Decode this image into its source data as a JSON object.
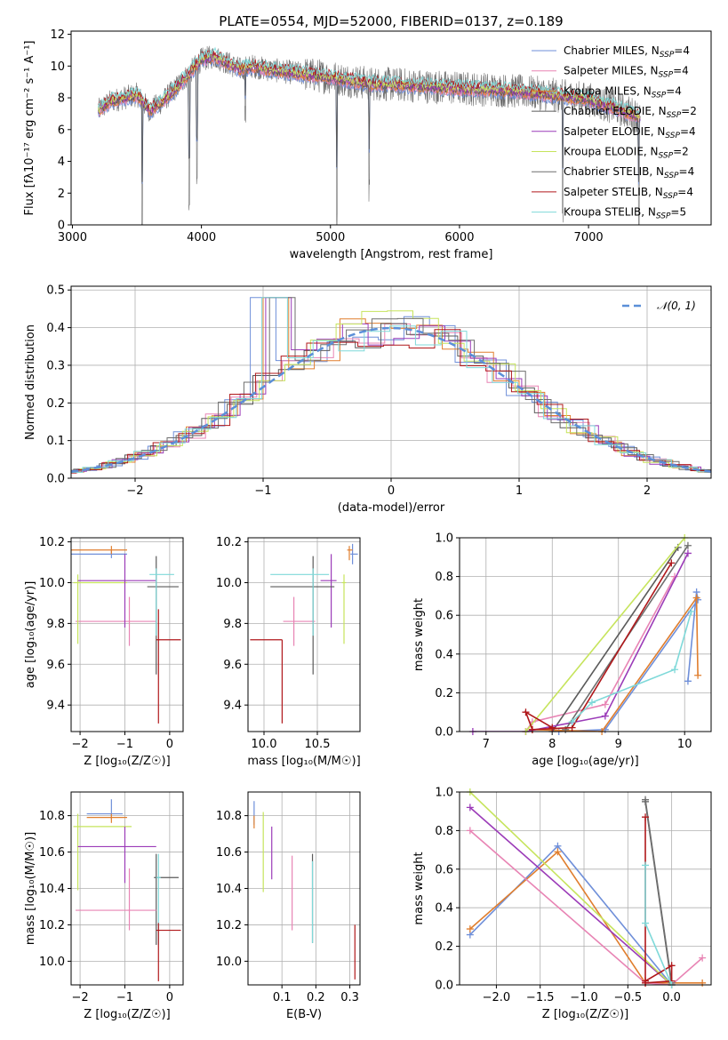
{
  "colors": {
    "Chabrier MILES": "#6f8fd9",
    "Salpeter MILES": "#e884b4",
    "Kroupa MILES": "#e07e2e",
    "Chabrier ELODIE": "#5a5a5a",
    "Salpeter ELODIE": "#9b3bb8",
    "Kroupa ELODIE": "#c6e45c",
    "Chabrier STELIB": "#6e6e6e",
    "Salpeter STELIB": "#b0181b",
    "Kroupa STELIB": "#7fd9d9",
    "gauss": "#5b8fd8"
  },
  "chart_data": [
    {
      "id": "spectrum",
      "type": "line",
      "title": "PLATE=0554, MJD=52000, FIBERID=0137, z=0.189",
      "xlabel": "wavelength [Angstrom, rest frame]",
      "ylabel": "Flux [fλ10⁻¹⁷ erg cm⁻² s⁻¹ A⁻¹]",
      "xlim": [
        2990,
        7950
      ],
      "ylim": [
        0,
        12.2
      ],
      "xticks": [
        3000,
        4000,
        5000,
        6000,
        7000
      ],
      "yticks": [
        0,
        2,
        4,
        6,
        8,
        10,
        12
      ],
      "legend_position": "top-right",
      "legend": [
        {
          "name": "Chabrier MILES",
          "sub": "4"
        },
        {
          "name": "Salpeter MILES",
          "sub": "4"
        },
        {
          "name": "Kroupa MILES",
          "sub": "4"
        },
        {
          "name": "Chabrier ELODIE",
          "sub": "2"
        },
        {
          "name": "Salpeter ELODIE",
          "sub": "4"
        },
        {
          "name": "Kroupa ELODIE",
          "sub": "2"
        },
        {
          "name": "Chabrier STELIB",
          "sub": "4"
        },
        {
          "name": "Salpeter STELIB",
          "sub": "4"
        },
        {
          "name": "Kroupa STELIB",
          "sub": "5"
        }
      ],
      "data_series": "Chabrier STELIB",
      "continuum": {
        "x": [
          3200,
          3300,
          3400,
          3500,
          3600,
          3700,
          3800,
          3900,
          4000,
          4100,
          4200,
          4300,
          4400,
          4500,
          4700,
          5000,
          5300,
          5600,
          6000,
          6300,
          6600,
          6800,
          7000,
          7200,
          7400
        ],
        "y": [
          7.2,
          7.8,
          8.0,
          8.2,
          7.2,
          7.8,
          8.6,
          9.5,
          10.4,
          10.6,
          10.2,
          9.8,
          10.0,
          9.8,
          9.6,
          9.3,
          8.9,
          8.8,
          8.6,
          8.5,
          8.3,
          8.1,
          7.9,
          7.4,
          6.8
        ]
      },
      "absorption_features": [
        {
          "x": 3540,
          "depth": 8.0
        },
        {
          "x": 3905,
          "depth": 8.5
        },
        {
          "x": 3965,
          "depth": 7.5
        },
        {
          "x": 4340,
          "depth": 3.0
        },
        {
          "x": 5050,
          "depth": 9.0
        },
        {
          "x": 5300,
          "depth": 7.0
        },
        {
          "x": 6800,
          "depth": 7.0
        },
        {
          "x": 7390,
          "depth": 7.0
        }
      ]
    },
    {
      "id": "residuals",
      "type": "step-histogram",
      "xlabel": "(data-model)/error",
      "ylabel": "Normed distribution",
      "xlim": [
        -2.5,
        2.5
      ],
      "ylim": [
        0,
        0.51
      ],
      "xticks": [
        -2,
        -1,
        0,
        1,
        2
      ],
      "yticks": [
        0.0,
        0.1,
        0.2,
        0.3,
        0.4,
        0.5
      ],
      "bin_width": 0.2,
      "legend_position": "top-right",
      "legend": [
        {
          "name": "𝒩(0, 1)",
          "style": "dashed",
          "mean": 0,
          "sigma": 1
        }
      ],
      "series": [
        {
          "name": "Chabrier MILES",
          "offset": 0.0
        },
        {
          "name": "Salpeter MILES",
          "offset": 0.05
        },
        {
          "name": "Kroupa MILES",
          "offset": 0.1
        },
        {
          "name": "Chabrier ELODIE",
          "offset": 0.02
        },
        {
          "name": "Salpeter ELODIE",
          "offset": 0.12
        },
        {
          "name": "Kroupa ELODIE",
          "offset": 0.07
        },
        {
          "name": "Chabrier STELIB",
          "offset": 0.15
        },
        {
          "name": "Salpeter STELIB",
          "offset": 0.04
        },
        {
          "name": "Kroupa STELIB",
          "offset": 0.09
        }
      ]
    },
    {
      "id": "age-vs-Z",
      "type": "errorbar",
      "xlabel": "Z [log₁₀(Z/Z☉)]",
      "ylabel": "age  [log₁₀(age/yr)]",
      "xlim": [
        -2.2,
        0.3
      ],
      "ylim": [
        9.27,
        10.22
      ],
      "xticks": [
        -2,
        -1,
        0
      ],
      "yticks": [
        9.4,
        9.6,
        9.8,
        10.0,
        10.2
      ],
      "points": [
        {
          "s": "Chabrier MILES",
          "x": -1.3,
          "xl": 1.6,
          "xh": 0.35,
          "y": 10.14,
          "yl": 0.02,
          "yh": 0.02
        },
        {
          "s": "Kroupa MILES",
          "x": -1.3,
          "xl": 1.6,
          "xh": 0.35,
          "y": 10.16,
          "yl": 0.02,
          "yh": 0.02
        },
        {
          "s": "Salpeter MILES",
          "x": -0.9,
          "xl": 1.2,
          "xh": 0.6,
          "y": 9.81,
          "yl": 0.12,
          "yh": 0.12
        },
        {
          "s": "Kroupa ELODIE",
          "x": -2.05,
          "xl": 0.1,
          "xh": 1.1,
          "y": 10.0,
          "yl": 0.3,
          "yh": 0.04
        },
        {
          "s": "Salpeter ELODIE",
          "x": -1.0,
          "xl": 1.05,
          "xh": 0.7,
          "y": 10.01,
          "yl": 0.23,
          "yh": 0.13
        },
        {
          "s": "Chabrier ELODIE",
          "x": -0.3,
          "xl": 0.2,
          "xh": 0.5,
          "y": 9.98,
          "yl": 0.43,
          "yh": 0.15
        },
        {
          "s": "Kroupa STELIB",
          "x": -0.3,
          "xl": 0.15,
          "xh": 0.4,
          "y": 10.04,
          "yl": 0.3,
          "yh": 0.03
        },
        {
          "s": "Salpeter STELIB",
          "x": -0.25,
          "xl": 0.05,
          "xh": 0.5,
          "y": 9.72,
          "yl": 0.41,
          "yh": 0.15
        }
      ]
    },
    {
      "id": "age-vs-mass",
      "type": "errorbar",
      "xlabel": "mass [log₁₀(M/M☉)]",
      "ylabel": "",
      "xlim": [
        9.85,
        10.9
      ],
      "ylim": [
        9.27,
        10.22
      ],
      "xticks": [
        10.0,
        10.5
      ],
      "yticks": [
        9.4,
        9.6,
        9.8,
        10.0,
        10.2
      ],
      "points": [
        {
          "s": "Chabrier MILES",
          "x": 10.83,
          "xl": 0.02,
          "xh": 0.05,
          "y": 10.14,
          "yl": 0.05,
          "yh": 0.05
        },
        {
          "s": "Kroupa MILES",
          "x": 10.8,
          "xl": 0.02,
          "xh": 0.03,
          "y": 10.16,
          "yl": 0.05,
          "yh": 0.02
        },
        {
          "s": "Salpeter MILES",
          "x": 10.28,
          "xl": 0.1,
          "xh": 0.2,
          "y": 9.81,
          "yl": 0.12,
          "yh": 0.12
        },
        {
          "s": "Kroupa ELODIE",
          "x": 10.75,
          "xl": 0.02,
          "xh": 0.02,
          "y": 10.0,
          "yl": 0.3,
          "yh": 0.04
        },
        {
          "s": "Salpeter ELODIE",
          "x": 10.63,
          "xl": 0.1,
          "xh": 0.05,
          "y": 10.01,
          "yl": 0.23,
          "yh": 0.13
        },
        {
          "s": "Chabrier ELODIE",
          "x": 10.46,
          "xl": 0.4,
          "xh": 0.2,
          "y": 9.98,
          "yl": 0.43,
          "yh": 0.15
        },
        {
          "s": "Kroupa STELIB",
          "x": 10.46,
          "xl": 0.4,
          "xh": 0.15,
          "y": 10.04,
          "yl": 0.3,
          "yh": 0.03
        },
        {
          "s": "Salpeter STELIB",
          "x": 10.17,
          "xl": 0.3,
          "xh": 0.0,
          "y": 9.72,
          "yl": 0.41,
          "yh": 0.0
        }
      ]
    },
    {
      "id": "mass-vs-Z",
      "type": "errorbar",
      "xlabel": "Z [log₁₀(Z/Z☉)]",
      "ylabel": "mass [log₁₀(M/M☉)]",
      "xlim": [
        -2.2,
        0.3
      ],
      "ylim": [
        9.87,
        10.93
      ],
      "xticks": [
        -2,
        -1,
        0
      ],
      "yticks": [
        10.0,
        10.2,
        10.4,
        10.6,
        10.8
      ],
      "points": [
        {
          "s": "Chabrier MILES",
          "x": -1.3,
          "xl": 0.55,
          "xh": 0.25,
          "y": 10.81,
          "yl": 0.03,
          "yh": 0.08
        },
        {
          "s": "Kroupa MILES",
          "x": -1.3,
          "xl": 0.55,
          "xh": 0.35,
          "y": 10.79,
          "yl": 0.03,
          "yh": 0.02
        },
        {
          "s": "Kroupa ELODIE",
          "x": -2.05,
          "xl": 0.1,
          "xh": 1.2,
          "y": 10.74,
          "yl": 0.35,
          "yh": 0.07
        },
        {
          "s": "Salpeter ELODIE",
          "x": -1.0,
          "xl": 1.05,
          "xh": 0.7,
          "y": 10.63,
          "yl": 0.2,
          "yh": 0.11
        },
        {
          "s": "Chabrier ELODIE",
          "x": -0.3,
          "xl": 0.05,
          "xh": 0.5,
          "y": 10.46,
          "yl": 0.37,
          "yh": 0.13
        },
        {
          "s": "Kroupa STELIB",
          "x": -0.25,
          "xl": 0.05,
          "xh": 0.05,
          "y": 10.46,
          "yl": 0.37,
          "yh": 0.13
        },
        {
          "s": "Salpeter MILES",
          "x": -0.9,
          "xl": 1.2,
          "xh": 0.6,
          "y": 10.28,
          "yl": 0.11,
          "yh": 0.23
        },
        {
          "s": "Salpeter STELIB",
          "x": -0.25,
          "xl": 0.05,
          "xh": 0.5,
          "y": 10.17,
          "yl": 0.28,
          "yh": 0.04
        }
      ]
    },
    {
      "id": "mass-vs-ebv",
      "type": "errorbar",
      "xlabel": "E(B-V)",
      "ylabel": "",
      "xlim": [
        0.0,
        0.33
      ],
      "ylim": [
        9.87,
        10.93
      ],
      "xticks": [
        0.1,
        0.2,
        0.3
      ],
      "yticks": [
        10.0,
        10.2,
        10.4,
        10.6,
        10.8
      ],
      "points": [
        {
          "s": "Chabrier MILES",
          "x": 0.018,
          "xl": 0,
          "xh": 0,
          "y": 10.8,
          "yl": 0.05,
          "yh": 0.08
        },
        {
          "s": "Kroupa MILES",
          "x": 0.018,
          "xl": 0,
          "xh": 0,
          "y": 10.78,
          "yl": 0.05,
          "yh": 0.02
        },
        {
          "s": "Kroupa ELODIE",
          "x": 0.045,
          "xl": 0,
          "xh": 0,
          "y": 10.6,
          "yl": 0.22,
          "yh": 0.22
        },
        {
          "s": "Salpeter ELODIE",
          "x": 0.07,
          "xl": 0,
          "xh": 0,
          "y": 10.6,
          "yl": 0.15,
          "yh": 0.14
        },
        {
          "s": "Salpeter MILES",
          "x": 0.13,
          "xl": 0,
          "xh": 0,
          "y": 10.35,
          "yl": 0.18,
          "yh": 0.23
        },
        {
          "s": "Chabrier ELODIE",
          "x": 0.19,
          "xl": 0,
          "xh": 0,
          "y": 10.35,
          "yl": 0.25,
          "yh": 0.24
        },
        {
          "s": "Kroupa STELIB",
          "x": 0.19,
          "xl": 0,
          "xh": 0,
          "y": 10.35,
          "yl": 0.25,
          "yh": 0.2
        },
        {
          "s": "Salpeter STELIB",
          "x": 0.315,
          "xl": 0,
          "xh": 0,
          "y": 10.05,
          "yl": 0.15,
          "yh": 0.15
        }
      ]
    },
    {
      "id": "weight-vs-age",
      "type": "line",
      "xlabel": "age  [log₁₀(age/yr)]",
      "ylabel": "mass weight",
      "xlim": [
        6.6,
        10.4
      ],
      "ylim": [
        0,
        1.0
      ],
      "xticks": [
        7,
        8,
        9,
        10
      ],
      "yticks": [
        0.0,
        0.2,
        0.4,
        0.6,
        0.8,
        1.0
      ],
      "series": [
        {
          "name": "Chabrier MILES",
          "x": [
            10.05,
            10.18,
            10.2,
            8.8,
            8.1
          ],
          "y": [
            0.26,
            0.72,
            0.68,
            0.01,
            0.0
          ]
        },
        {
          "name": "Kroupa MILES",
          "x": [
            10.2,
            10.18,
            8.75,
            7.7
          ],
          "y": [
            0.29,
            0.69,
            0.0,
            0.01
          ]
        },
        {
          "name": "Salpeter MILES",
          "x": [
            9.85,
            8.8,
            7.7,
            7.6
          ],
          "y": [
            0.8,
            0.14,
            0.05,
            0.0
          ]
        },
        {
          "name": "Chabrier ELODIE",
          "x": [
            9.9,
            8.0
          ],
          "y": [
            0.95,
            0.0
          ]
        },
        {
          "name": "Salpeter ELODIE",
          "x": [
            10.05,
            8.8,
            7.6,
            6.8
          ],
          "y": [
            0.92,
            0.08,
            0.0,
            0.0
          ]
        },
        {
          "name": "Kroupa ELODIE",
          "x": [
            10.0,
            7.6
          ],
          "y": [
            1.0,
            0.0
          ]
        },
        {
          "name": "Chabrier STELIB",
          "x": [
            10.05,
            8.2
          ],
          "y": [
            0.96,
            0.01
          ]
        },
        {
          "name": "Salpeter STELIB",
          "x": [
            9.8,
            8.3,
            7.7,
            7.6,
            8.0
          ],
          "y": [
            0.87,
            0.02,
            0.01,
            0.1,
            0.02
          ]
        },
        {
          "name": "Kroupa STELIB",
          "x": [
            10.1,
            9.85,
            8.6,
            8.3
          ],
          "y": [
            0.62,
            0.32,
            0.15,
            0.05
          ]
        }
      ]
    },
    {
      "id": "weight-vs-Z",
      "type": "line",
      "xlabel": "Z [log₁₀(Z/Z☉)]",
      "ylabel": "mass weight",
      "xlim": [
        -2.42,
        0.45
      ],
      "ylim": [
        0,
        1.0
      ],
      "xticks": [
        -2.0,
        -1.5,
        -1.0,
        -0.5,
        0.0
      ],
      "yticks": [
        0.0,
        0.2,
        0.4,
        0.6,
        0.8,
        1.0
      ],
      "series": [
        {
          "name": "Chabrier MILES",
          "x": [
            -2.3,
            -1.3,
            0.0
          ],
          "y": [
            0.26,
            0.72,
            0.0
          ]
        },
        {
          "name": "Kroupa MILES",
          "x": [
            -2.3,
            -1.3,
            -0.3,
            0.35
          ],
          "y": [
            0.29,
            0.69,
            0.01,
            0.01
          ]
        },
        {
          "name": "Salpeter MILES",
          "x": [
            -2.3,
            -0.3,
            0.0,
            0.35
          ],
          "y": [
            0.8,
            0.01,
            0.0,
            0.14
          ]
        },
        {
          "name": "Chabrier ELODIE",
          "x": [
            -0.3,
            0.0
          ],
          "y": [
            0.95,
            0.0
          ]
        },
        {
          "name": "Salpeter ELODIE",
          "x": [
            -2.3,
            0.0
          ],
          "y": [
            0.92,
            0.0
          ]
        },
        {
          "name": "Kroupa ELODIE",
          "x": [
            -2.3,
            0.0
          ],
          "y": [
            1.0,
            0.0
          ]
        },
        {
          "name": "Chabrier STELIB",
          "x": [
            -0.3,
            0.0
          ],
          "y": [
            0.96,
            0.01
          ]
        },
        {
          "name": "Salpeter STELIB",
          "x": [
            -0.3,
            -0.3,
            0.0,
            0.0,
            -0.3
          ],
          "y": [
            0.87,
            0.02,
            0.1,
            0.02,
            0.01
          ]
        },
        {
          "name": "Kroupa STELIB",
          "x": [
            -0.3,
            -0.3,
            0.0
          ],
          "y": [
            0.62,
            0.32,
            0.0
          ]
        }
      ]
    }
  ]
}
